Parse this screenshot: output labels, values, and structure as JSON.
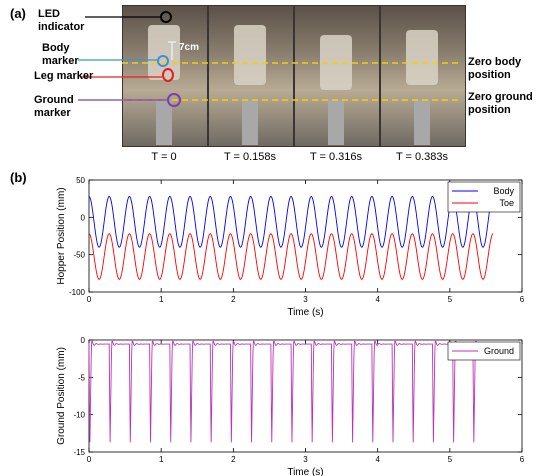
{
  "panel_a": {
    "label": "(a)",
    "callouts": {
      "led": "LED indicator",
      "body": "Body marker",
      "leg": "Leg marker",
      "ground": "Ground marker",
      "scale": "7cm"
    },
    "zero_labels": {
      "body": "Zero body position",
      "ground": "Zero ground position"
    },
    "frame_times": [
      "T = 0",
      "T = 0.158s",
      "T = 0.316s",
      "T = 0.383s"
    ],
    "colors": {
      "led": "#000000",
      "body": "#3a8fd8",
      "leg": "#e02020",
      "ground": "#7b3fb0",
      "zero_line": "#f5d000"
    }
  },
  "panel_b": {
    "label": "(b)"
  },
  "chart_data": [
    {
      "type": "line",
      "xlabel": "Time (s)",
      "ylabel": "Hopper Position (mm)",
      "xlim": [
        0,
        6
      ],
      "ylim": [
        -100,
        50
      ],
      "xticks": [
        0,
        1,
        2,
        3,
        4,
        5,
        6
      ],
      "yticks": [
        -100,
        -50,
        0,
        50
      ],
      "legend_position": "top-right",
      "series": [
        {
          "name": "Body",
          "color": "#0000ff",
          "period_s": 0.28,
          "min": -40,
          "max": 28,
          "x_end": 5.6
        },
        {
          "name": "Toe",
          "color": "#ff0000",
          "period_s": 0.28,
          "min": -83,
          "max": -22,
          "x_end": 5.6
        }
      ]
    },
    {
      "type": "line",
      "xlabel": "Time (s)",
      "ylabel": "Ground Position (mm)",
      "xlim": [
        0,
        6
      ],
      "ylim": [
        -15,
        0
      ],
      "xticks": [
        0,
        1,
        2,
        3,
        4,
        5,
        6
      ],
      "yticks": [
        -15,
        -10,
        -5,
        0
      ],
      "legend_position": "top-right",
      "series": [
        {
          "name": "Ground",
          "color": "#bb33bb",
          "period_s": 0.28,
          "baseline": -0.4,
          "dip": -14.5,
          "x_end": 5.6
        }
      ]
    }
  ]
}
